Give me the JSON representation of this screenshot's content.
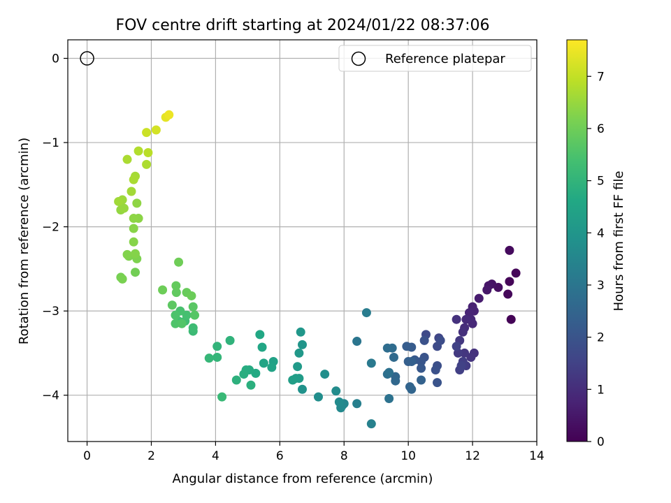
{
  "chart_data": {
    "type": "scatter",
    "title": "FOV centre drift starting at 2024/01/22 08:37:06",
    "xlabel": "Angular distance from reference (arcmin)",
    "ylabel": "Rotation from reference (arcmin)",
    "xlim": [
      -0.6,
      14.0
    ],
    "ylim": [
      -4.55,
      0.22
    ],
    "xticks": [
      0,
      2,
      4,
      6,
      8,
      10,
      12,
      14
    ],
    "xtick_labels": [
      "0",
      "2",
      "4",
      "6",
      "8",
      "10",
      "12",
      "14"
    ],
    "yticks": [
      0,
      -1,
      -2,
      -3,
      -4
    ],
    "ytick_labels": [
      "0",
      "−1",
      "−2",
      "−3",
      "−4"
    ],
    "grid": true,
    "legend": {
      "placement": "top-right",
      "entries": [
        "Reference platepar"
      ]
    },
    "reference_point": {
      "x": 0,
      "y": 0
    },
    "colorbar": {
      "label": "Hours from first FF file",
      "range": [
        0,
        7.7
      ],
      "ticks": [
        0,
        1,
        2,
        3,
        4,
        5,
        6,
        7
      ],
      "tick_labels": [
        "0",
        "1",
        "2",
        "3",
        "4",
        "5",
        "6",
        "7"
      ],
      "colormap": "viridis"
    },
    "points": [
      [
        13.2,
        -3.1,
        0.05
      ],
      [
        13.15,
        -2.65,
        0.1
      ],
      [
        13.35,
        -2.55,
        0.12
      ],
      [
        13.1,
        -2.8,
        0.15
      ],
      [
        13.15,
        -2.28,
        0.2
      ],
      [
        12.8,
        -2.72,
        0.3
      ],
      [
        12.6,
        -2.68,
        0.4
      ],
      [
        12.5,
        -2.7,
        0.45
      ],
      [
        12.45,
        -2.75,
        0.5
      ],
      [
        12.2,
        -2.85,
        0.6
      ],
      [
        12.0,
        -2.95,
        0.7
      ],
      [
        12.05,
        -3.0,
        0.75
      ],
      [
        11.9,
        -3.02,
        0.8
      ],
      [
        11.95,
        -3.1,
        0.85
      ],
      [
        12.0,
        -3.15,
        0.9
      ],
      [
        11.8,
        -3.1,
        0.95
      ],
      [
        11.75,
        -3.2,
        1.0
      ],
      [
        11.7,
        -3.25,
        1.05
      ],
      [
        11.5,
        -3.1,
        1.1
      ],
      [
        12.05,
        -3.5,
        1.1
      ],
      [
        11.95,
        -3.55,
        1.15
      ],
      [
        11.75,
        -3.5,
        1.2
      ],
      [
        11.6,
        -3.35,
        1.25
      ],
      [
        11.55,
        -3.5,
        1.3
      ],
      [
        11.8,
        -3.65,
        1.35
      ],
      [
        11.7,
        -3.6,
        1.4
      ],
      [
        11.6,
        -3.7,
        1.45
      ],
      [
        11.65,
        -3.65,
        1.5
      ],
      [
        11.5,
        -3.42,
        1.5
      ],
      [
        10.95,
        -3.32,
        1.6
      ],
      [
        10.55,
        -3.28,
        1.7
      ],
      [
        10.9,
        -3.42,
        1.75
      ],
      [
        11.0,
        -3.35,
        1.8
      ],
      [
        10.9,
        -3.65,
        1.85
      ],
      [
        10.85,
        -3.7,
        1.9
      ],
      [
        10.5,
        -3.35,
        1.95
      ],
      [
        10.5,
        -3.55,
        2.0
      ],
      [
        10.4,
        -3.6,
        2.05
      ],
      [
        10.4,
        -3.68,
        2.1
      ],
      [
        10.2,
        -3.58,
        2.15
      ],
      [
        10.1,
        -3.43,
        2.2
      ],
      [
        9.95,
        -3.42,
        2.25
      ],
      [
        10.0,
        -3.6,
        2.3
      ],
      [
        10.1,
        -3.6,
        2.35
      ],
      [
        10.9,
        -3.85,
        2.0
      ],
      [
        10.4,
        -3.82,
        2.4
      ],
      [
        10.05,
        -3.9,
        2.45
      ],
      [
        10.1,
        -3.93,
        2.5
      ],
      [
        9.6,
        -3.78,
        2.55
      ],
      [
        9.6,
        -3.83,
        2.6
      ],
      [
        9.55,
        -3.55,
        2.65
      ],
      [
        9.5,
        -3.44,
        2.7
      ],
      [
        9.35,
        -3.44,
        2.75
      ],
      [
        9.35,
        -3.75,
        2.8
      ],
      [
        9.4,
        -3.73,
        2.85
      ],
      [
        9.4,
        -4.04,
        2.9
      ],
      [
        8.4,
        -3.36,
        3.0
      ],
      [
        8.85,
        -3.62,
        3.1
      ],
      [
        8.7,
        -3.02,
        3.2
      ],
      [
        8.4,
        -4.1,
        3.3
      ],
      [
        8.85,
        -4.34,
        3.35
      ],
      [
        8.0,
        -4.1,
        3.5
      ],
      [
        7.95,
        -4.12,
        3.55
      ],
      [
        7.9,
        -4.15,
        3.6
      ],
      [
        7.85,
        -4.08,
        3.65
      ],
      [
        7.75,
        -3.95,
        3.7
      ],
      [
        7.2,
        -4.02,
        3.75
      ],
      [
        7.4,
        -3.75,
        3.8
      ],
      [
        6.7,
        -3.93,
        3.9
      ],
      [
        6.7,
        -3.4,
        4.0
      ],
      [
        6.65,
        -3.25,
        4.05
      ],
      [
        6.6,
        -3.5,
        4.1
      ],
      [
        6.55,
        -3.66,
        4.15
      ],
      [
        6.6,
        -3.8,
        4.2
      ],
      [
        6.5,
        -3.8,
        4.25
      ],
      [
        6.4,
        -3.82,
        4.3
      ],
      [
        5.8,
        -3.6,
        4.4
      ],
      [
        5.75,
        -3.67,
        4.45
      ],
      [
        5.5,
        -3.62,
        4.5
      ],
      [
        5.45,
        -3.43,
        4.55
      ],
      [
        5.38,
        -3.28,
        4.6
      ],
      [
        5.25,
        -3.74,
        4.65
      ],
      [
        5.05,
        -3.7,
        4.7
      ],
      [
        4.95,
        -3.7,
        4.75
      ],
      [
        4.88,
        -3.75,
        4.8
      ],
      [
        5.1,
        -3.88,
        4.85
      ],
      [
        4.65,
        -3.82,
        4.9
      ],
      [
        4.45,
        -3.35,
        4.95
      ],
      [
        4.05,
        -3.42,
        5.0
      ],
      [
        4.05,
        -3.55,
        5.05
      ],
      [
        3.8,
        -3.56,
        5.1
      ],
      [
        4.2,
        -4.02,
        5.15
      ],
      [
        3.3,
        -3.24,
        5.2
      ],
      [
        3.3,
        -3.2,
        5.25
      ],
      [
        3.05,
        -3.12,
        5.3
      ],
      [
        2.85,
        -3.12,
        5.35
      ],
      [
        3.1,
        -3.05,
        5.4
      ],
      [
        2.9,
        -3.0,
        5.45
      ],
      [
        2.75,
        -3.05,
        5.5
      ],
      [
        2.75,
        -3.15,
        5.55
      ],
      [
        2.95,
        -3.15,
        5.6
      ],
      [
        3.35,
        -3.05,
        5.65
      ],
      [
        3.3,
        -2.95,
        5.7
      ],
      [
        2.65,
        -2.93,
        5.75
      ],
      [
        2.78,
        -2.78,
        5.8
      ],
      [
        2.77,
        -2.7,
        5.85
      ],
      [
        3.1,
        -2.78,
        5.9
      ],
      [
        3.25,
        -2.82,
        5.95
      ],
      [
        2.35,
        -2.75,
        5.98
      ],
      [
        2.85,
        -2.42,
        6.0
      ],
      [
        1.5,
        -2.54,
        6.05
      ],
      [
        1.05,
        -2.6,
        6.1
      ],
      [
        1.1,
        -2.62,
        6.15
      ],
      [
        1.55,
        -2.38,
        6.2
      ],
      [
        1.3,
        -2.35,
        6.22
      ],
      [
        1.25,
        -2.33,
        6.25
      ],
      [
        1.5,
        -2.32,
        6.28
      ],
      [
        1.45,
        -2.18,
        6.3
      ],
      [
        1.45,
        -2.02,
        6.32
      ],
      [
        1.6,
        -1.9,
        6.35
      ],
      [
        1.45,
        -1.9,
        6.38
      ],
      [
        1.55,
        -1.72,
        6.4
      ],
      [
        1.05,
        -1.8,
        6.45
      ],
      [
        1.15,
        -1.78,
        6.5
      ],
      [
        1.1,
        -1.68,
        6.55
      ],
      [
        0.98,
        -1.7,
        6.6
      ],
      [
        1.38,
        -1.58,
        6.62
      ],
      [
        1.5,
        -1.4,
        6.65
      ],
      [
        1.45,
        -1.44,
        6.7
      ],
      [
        1.25,
        -1.2,
        6.72
      ],
      [
        1.85,
        -1.26,
        6.75
      ],
      [
        1.6,
        -1.1,
        6.8
      ],
      [
        1.9,
        -1.12,
        6.9
      ],
      [
        1.85,
        -0.88,
        7.1
      ],
      [
        2.15,
        -0.85,
        7.2
      ],
      [
        2.45,
        -0.7,
        7.4
      ],
      [
        2.55,
        -0.67,
        7.5
      ]
    ]
  }
}
